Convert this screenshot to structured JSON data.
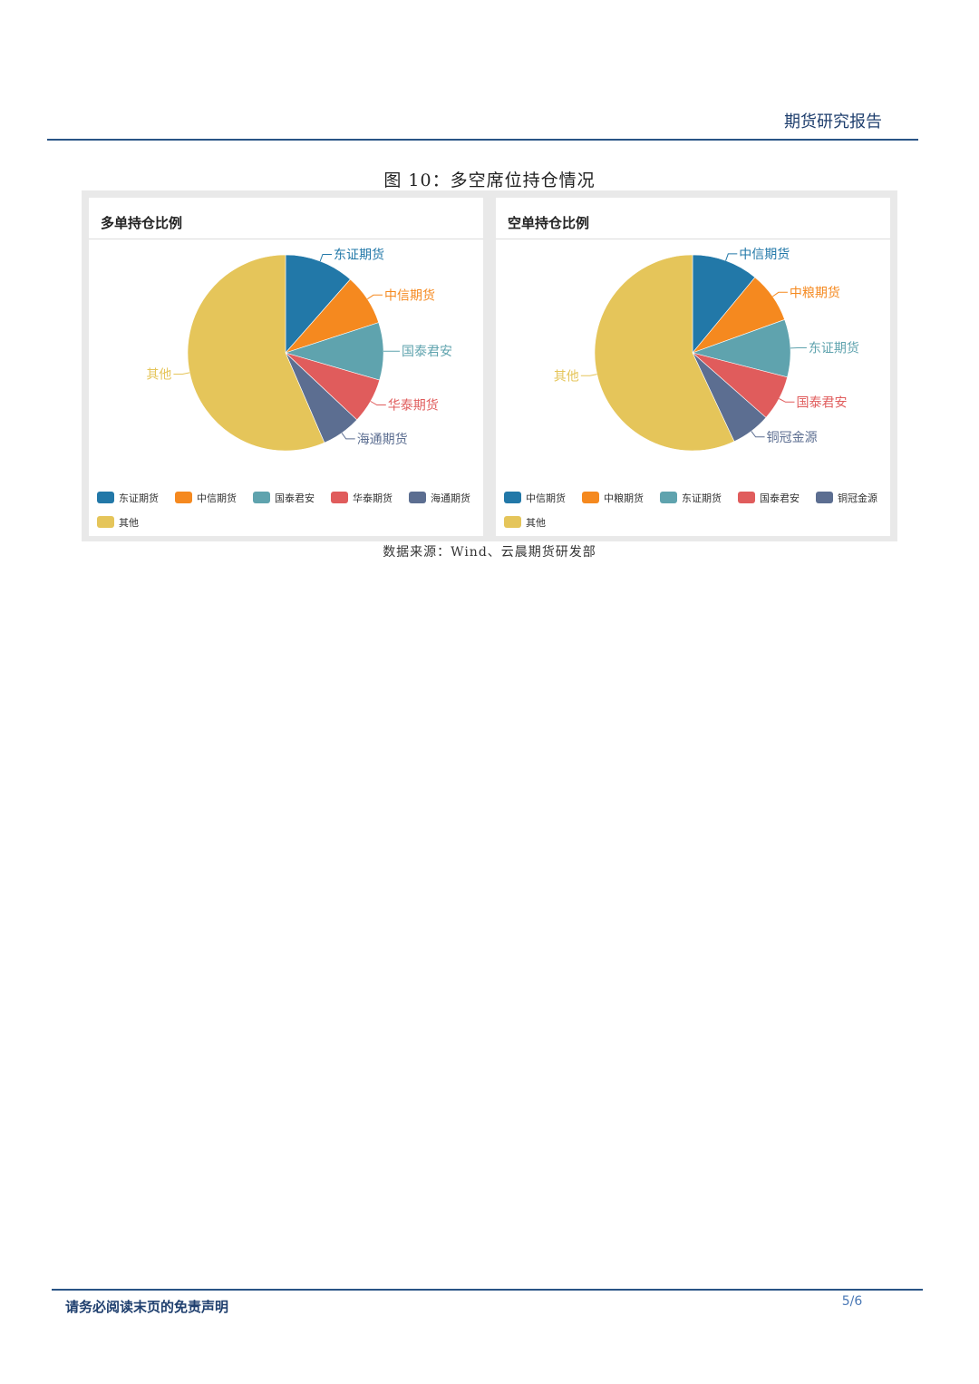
{
  "header": {
    "title": "期货研究报告"
  },
  "figure": {
    "title": "图 10：多空席位持仓情况",
    "source": "数据来源：Wind、云晨期货研发部"
  },
  "colors": {
    "blue": "#2278a8",
    "orange": "#f5891f",
    "teal": "#5fa3ae",
    "red": "#e05c5c",
    "slate": "#5c6e91",
    "yellow": "#e5c55a"
  },
  "chart_data": [
    {
      "type": "pie",
      "title": "多单持仓比例",
      "categories": [
        "东证期货",
        "中信期货",
        "国泰君安",
        "华泰期货",
        "海通期货",
        "其他"
      ],
      "values": [
        11.5,
        8.5,
        9.5,
        7.5,
        6.5,
        56.5
      ],
      "colors": [
        "#2278a8",
        "#f5891f",
        "#5fa3ae",
        "#e05c5c",
        "#5c6e91",
        "#e5c55a"
      ],
      "legend": "bottom"
    },
    {
      "type": "pie",
      "title": "空单持仓比例",
      "categories": [
        "中信期货",
        "中粮期货",
        "东证期货",
        "国泰君安",
        "铜冠金源",
        "其他"
      ],
      "values": [
        11.0,
        8.5,
        9.5,
        7.5,
        6.5,
        57.0
      ],
      "colors": [
        "#2278a8",
        "#f5891f",
        "#5fa3ae",
        "#e05c5c",
        "#5c6e91",
        "#e5c55a"
      ],
      "legend": "bottom"
    }
  ],
  "footer": {
    "disclaimer": "请务必阅读末页的免责声明",
    "page": "5/6"
  }
}
